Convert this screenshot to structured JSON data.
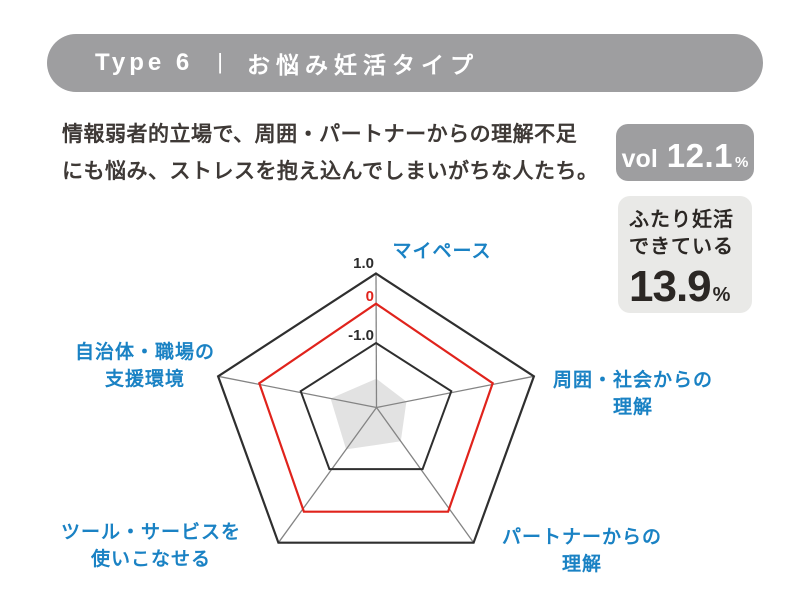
{
  "page": {
    "background": "#ffffff"
  },
  "header": {
    "type_label": "Type 6",
    "separator": "|",
    "title": "お悩み妊活タイプ",
    "bg_color": "#9e9ea0",
    "text_color": "#ffffff"
  },
  "description": {
    "line1": "情報弱者的立場で、周囲・パートナーからの理解不足",
    "line2": "にも悩み、ストレスを抱え込んでしまいがちな人たち。"
  },
  "vol_badge": {
    "prefix": "vol",
    "value": "12.1",
    "unit": "%",
    "bg_color": "#9e9ea0",
    "text_color": "#ffffff"
  },
  "achievement_badge": {
    "line1": "ふたり妊活",
    "line2": "できている",
    "value": "13.9",
    "unit": "%",
    "bg_color": "#e9e9e7",
    "text_color": "#2b2724"
  },
  "chart_data": {
    "type": "radar",
    "axes": [
      {
        "label": "マイペース",
        "value_estimated": -1.55,
        "radius_fraction": 0.215
      },
      {
        "label": "周囲・社会からの\n理解",
        "value_estimated": -1.6,
        "radius_fraction": 0.19
      },
      {
        "label": "パートナーからの\n理解",
        "value_estimated": -1.4,
        "radius_fraction": 0.25
      },
      {
        "label": "ツール・サービスを\n使いこなせる",
        "value_estimated": -1.3,
        "radius_fraction": 0.31
      },
      {
        "label": "自治体・職場の\n支援環境",
        "value_estimated": -1.4,
        "radius_fraction": 0.29
      }
    ],
    "rings": [
      {
        "label": "1.0",
        "value": 1.0,
        "color": "#2f2f2f",
        "stroke_width": 2.2
      },
      {
        "label": "0",
        "value": 0,
        "color": "#e0231c",
        "stroke_width": 2.2
      },
      {
        "label": "-1.0",
        "value": -1.0,
        "color": "#2f2f2f",
        "stroke_width": 2
      }
    ],
    "colors": {
      "label_blue": "#1a82c4",
      "data_fill": "#e2e2e2",
      "axis_line": "#848484",
      "grid": "#2f2f2f",
      "zero_ring": "#e0231c"
    },
    "legend_position": "none",
    "grid": true
  }
}
